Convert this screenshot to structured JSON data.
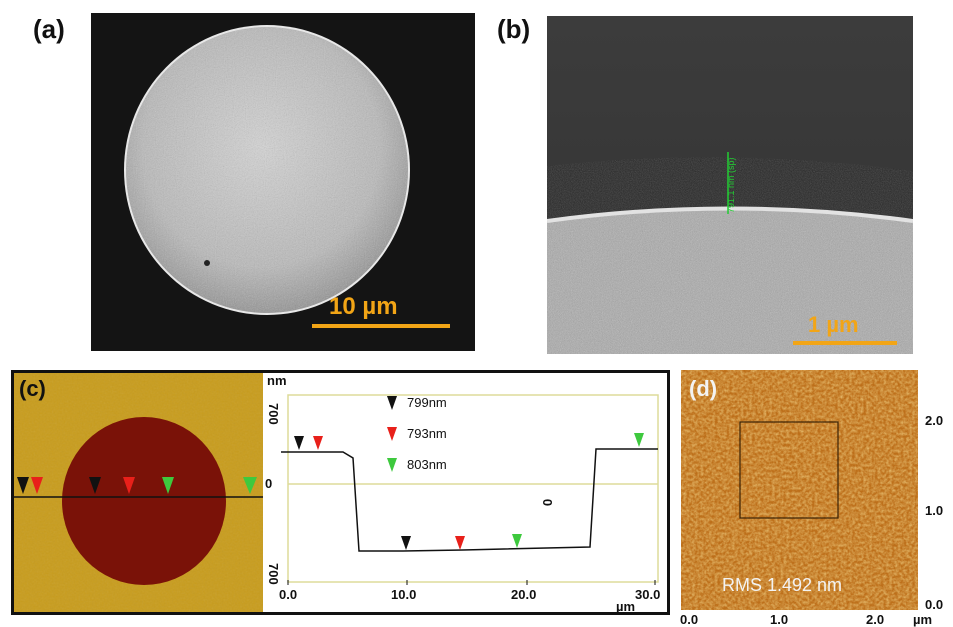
{
  "panels": {
    "a": {
      "label": "(a)",
      "scale_bar": "10 µm",
      "scale_color": "#f2a516"
    },
    "b": {
      "label": "(b)",
      "scale_bar": "1 µm",
      "measure": "791.1 nm (sp)",
      "measure_color": "#22cc33"
    },
    "c": {
      "label": "(c)",
      "afm_colors": {
        "background": "#c59a19",
        "dot": "#7a1208"
      },
      "profile": {
        "y_unit": "nm",
        "y_ticks": [
          "700",
          "0",
          "700"
        ],
        "x_unit": "µm",
        "x_ticks": [
          "0.0",
          "10.0",
          "20.0",
          "30.0"
        ],
        "marker_zero": "0",
        "legend": [
          {
            "value": "799nm",
            "color": "#000000"
          },
          {
            "value": "793nm",
            "color": "#e8201a"
          },
          {
            "value": "803nm",
            "color": "#3ec93e"
          }
        ]
      }
    },
    "d": {
      "label": "(d)",
      "rms": "RMS 1.492 nm",
      "y_ticks": [
        "2.0",
        "1.0",
        "0.0"
      ],
      "x_ticks": [
        "0.0",
        "1.0",
        "2.0"
      ],
      "x_unit": "µm"
    }
  }
}
